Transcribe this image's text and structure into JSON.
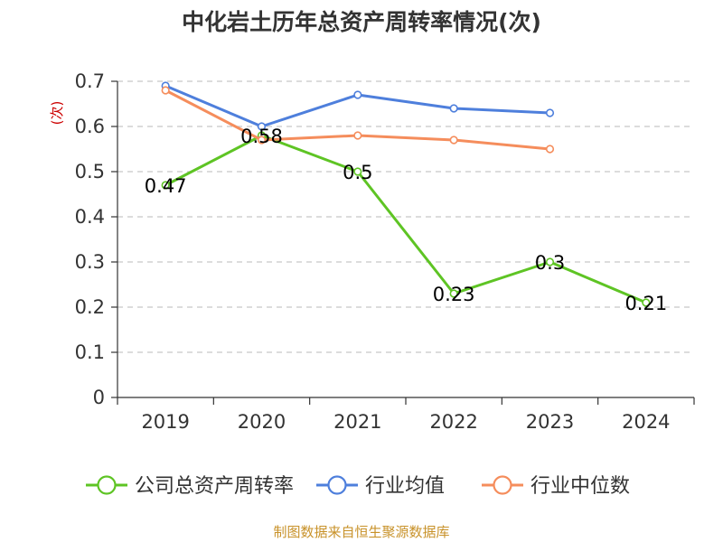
{
  "chart_data": {
    "type": "line",
    "title": "中化岩土历年总资产周转率情况(次)",
    "ylabel": "(次)",
    "xlabel": "",
    "categories": [
      "2019",
      "2020",
      "2021",
      "2022",
      "2023",
      "2024"
    ],
    "ylim": [
      0,
      0.7
    ],
    "yticks": [
      "0",
      "0.1",
      "0.2",
      "0.3",
      "0.4",
      "0.5",
      "0.6",
      "0.7"
    ],
    "grid": true,
    "legend_position": "bottom",
    "series": [
      {
        "name": "公司总资产周转率",
        "color": "#5ec424",
        "values": [
          0.47,
          0.58,
          0.5,
          0.23,
          0.3,
          0.21
        ],
        "labels": [
          "0.47",
          "0.58",
          "0.5",
          "0.23",
          "0.3",
          "0.21"
        ]
      },
      {
        "name": "行业均值",
        "color": "#4e7fdc",
        "values": [
          0.69,
          0.6,
          0.67,
          0.64,
          0.63,
          null
        ]
      },
      {
        "name": "行业中位数",
        "color": "#f58d5c",
        "values": [
          0.68,
          0.57,
          0.58,
          0.57,
          0.55,
          null
        ]
      }
    ]
  },
  "source": "制图数据来自恒生聚源数据库"
}
